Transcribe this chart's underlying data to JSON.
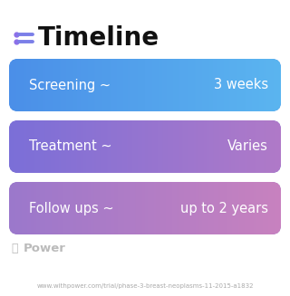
{
  "title": "Timeline",
  "title_fontsize": 20,
  "title_fontweight": "bold",
  "title_color": "#111111",
  "icon_dot_color": "#8B6FE8",
  "icon_line_color": "#7B7FE8",
  "rows": [
    {
      "label": "Screening ~",
      "value": "3 weeks",
      "color_left": "#4B8FE8",
      "color_right": "#5BB5F0"
    },
    {
      "label": "Treatment ~",
      "value": "Varies",
      "color_left": "#7B6FD8",
      "color_right": "#B07AC8"
    },
    {
      "label": "Follow ups ~",
      "value": "up to 2 years",
      "color_left": "#9B78CC",
      "color_right": "#C882BF"
    }
  ],
  "row_text_color": "#FFFFFF",
  "row_label_fontsize": 10.5,
  "row_value_fontsize": 10.5,
  "background_color": "#FFFFFF",
  "footer_text": "www.withpower.com/trial/phase-3-breast-neoplasms-11-2015-a1832",
  "footer_color": "#AAAAAA",
  "footer_fontsize": 5.0,
  "power_text": "Power",
  "power_color": "#BBBBBB",
  "power_fontsize": 9.5
}
